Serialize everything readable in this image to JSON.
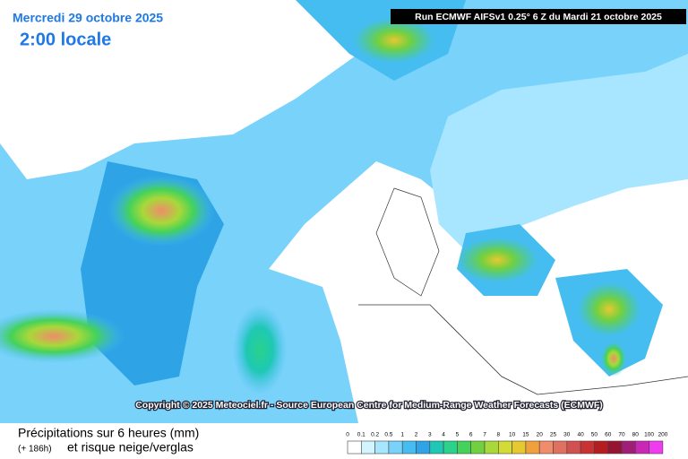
{
  "header": {
    "date": "Mercredi 29 octobre 2025",
    "time": "2:00 locale",
    "run": "Run ECMWF AIFSv1 0.25° 6 Z du Mardi 21 octobre 2025"
  },
  "copyright": "Copyright © 2025 Meteociel.fr - Source European Centre for Medium-Range Weather Forecasts (ECMWF)",
  "legend": {
    "title": "Précipitations sur 6 heures (mm)",
    "lead": "(+ 186h)",
    "subtitle": "et risque neige/verglas",
    "labels": [
      "0",
      "0.1",
      "0.2",
      "0.5",
      "1",
      "2",
      "3",
      "4",
      "5",
      "6",
      "7",
      "8",
      "10",
      "15",
      "20",
      "25",
      "30",
      "40",
      "50",
      "60",
      "70",
      "80",
      "100",
      "200"
    ],
    "colors": [
      "#ffffff",
      "#d2f5ff",
      "#a8e6ff",
      "#78d2fa",
      "#46bdf0",
      "#2ea4e6",
      "#1ec8b4",
      "#2ad28c",
      "#44d25a",
      "#72d040",
      "#a8d83a",
      "#d2dc34",
      "#e6c830",
      "#f0a03c",
      "#f08c6a",
      "#e07060",
      "#d25050",
      "#c83232",
      "#b41e1e",
      "#961432",
      "#a01e78",
      "#c828b4",
      "#f03cf0"
    ]
  }
}
